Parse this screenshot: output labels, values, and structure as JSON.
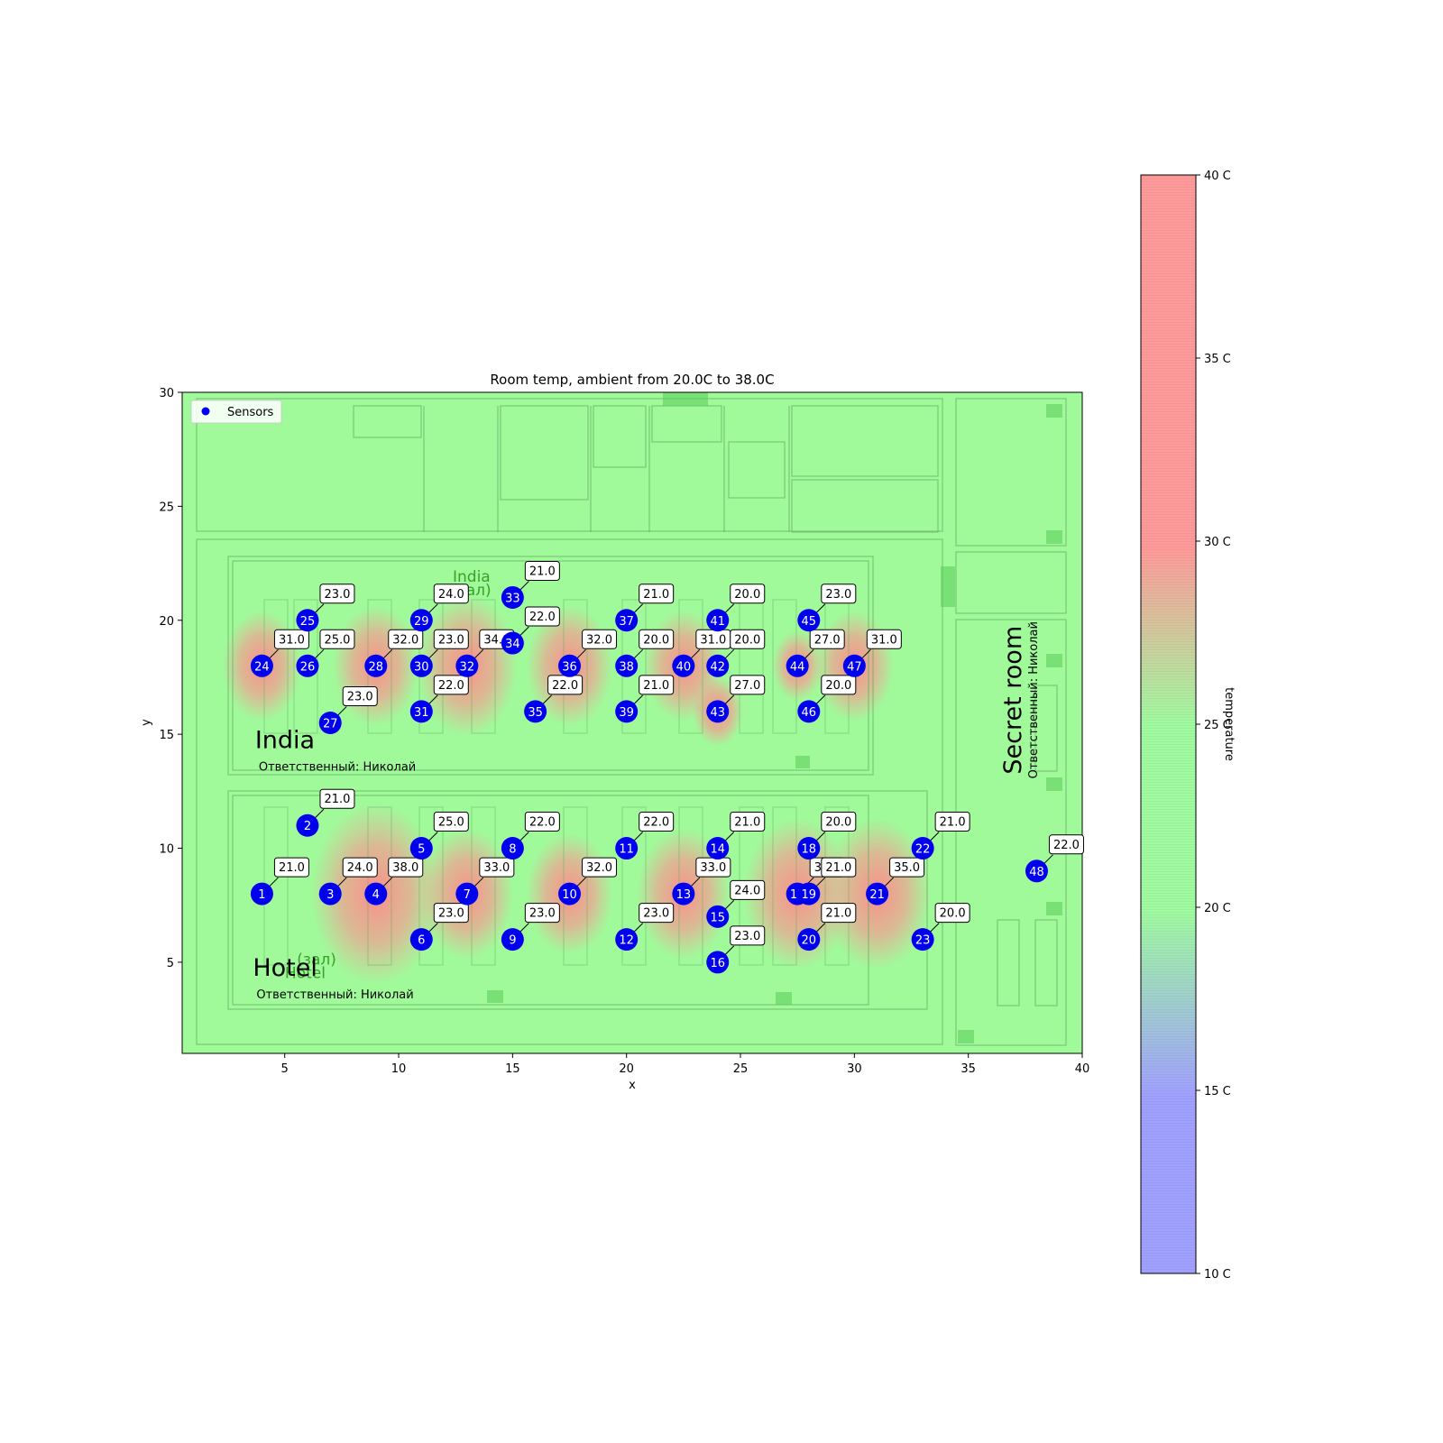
{
  "chart_data": {
    "type": "heatmap",
    "title": "Room temp, ambient from 20.0C to 38.0C",
    "xlabel": "x",
    "ylabel": "y",
    "xlim": [
      0.5,
      40
    ],
    "ylim": [
      1,
      30
    ],
    "xticks": [
      5,
      10,
      15,
      20,
      25,
      30,
      35,
      40
    ],
    "yticks": [
      5,
      10,
      15,
      20,
      25,
      30
    ],
    "legend": {
      "label": "Sensors",
      "placement": "top-left"
    },
    "colorbar": {
      "label": "temperature",
      "range": [
        10,
        40
      ],
      "ticks": [
        {
          "value": 10,
          "label": "10 C"
        },
        {
          "value": 15,
          "label": "15 C"
        },
        {
          "value": 20,
          "label": "20 C"
        },
        {
          "value": 25,
          "label": "25 C"
        },
        {
          "value": 30,
          "label": "30 C"
        },
        {
          "value": 35,
          "label": "35 C"
        },
        {
          "value": 40,
          "label": "40 C"
        }
      ]
    },
    "rooms": [
      {
        "name": "India",
        "responsible": "Ответственный: Николай",
        "x": 3.7,
        "y": 14.4,
        "vertical": false
      },
      {
        "name": "Hotel",
        "responsible": "Ответственный: Николай",
        "x": 3.6,
        "y": 4.4,
        "vertical": false
      },
      {
        "name": "Secret room",
        "responsible": "Ответственный: Николай",
        "x": 37.3,
        "y": 16.5,
        "vertical": true
      }
    ],
    "plan_labels": [
      {
        "text": "India",
        "x": 13.2,
        "y": 21.7
      },
      {
        "text": "(зал)",
        "x": 13.2,
        "y": 21.1
      },
      {
        "text": "Hotel",
        "x": 5.9,
        "y": 4.3
      },
      {
        "text": "(зал)",
        "x": 6.4,
        "y": 4.9
      }
    ],
    "sensors": [
      {
        "id": "1",
        "x": 4,
        "y": 8,
        "temp": "21.0"
      },
      {
        "id": "2",
        "x": 6,
        "y": 11,
        "temp": "21.0"
      },
      {
        "id": "3",
        "x": 7,
        "y": 8,
        "temp": "24.0"
      },
      {
        "id": "4",
        "x": 9,
        "y": 8,
        "temp": "38.0"
      },
      {
        "id": "5",
        "x": 11,
        "y": 10,
        "temp": "25.0"
      },
      {
        "id": "6",
        "x": 11,
        "y": 6,
        "temp": "23.0"
      },
      {
        "id": "7",
        "x": 13,
        "y": 8,
        "temp": "33.0"
      },
      {
        "id": "8",
        "x": 15,
        "y": 10,
        "temp": "22.0"
      },
      {
        "id": "9",
        "x": 15,
        "y": 6,
        "temp": "23.0"
      },
      {
        "id": "10",
        "x": 17.5,
        "y": 8,
        "temp": "32.0"
      },
      {
        "id": "11",
        "x": 20,
        "y": 10,
        "temp": "22.0"
      },
      {
        "id": "12",
        "x": 20,
        "y": 6,
        "temp": "23.0"
      },
      {
        "id": "13",
        "x": 22.5,
        "y": 8,
        "temp": "33.0"
      },
      {
        "id": "14",
        "x": 24,
        "y": 10,
        "temp": "21.0"
      },
      {
        "id": "15",
        "x": 24,
        "y": 7,
        "temp": "24.0"
      },
      {
        "id": "16",
        "x": 24,
        "y": 5,
        "temp": "23.0"
      },
      {
        "id": "17",
        "x": 27.5,
        "y": 8,
        "temp": "35.0"
      },
      {
        "id": "18",
        "x": 28,
        "y": 10,
        "temp": "20.0"
      },
      {
        "id": "19",
        "x": 28,
        "y": 8,
        "temp": "21.0"
      },
      {
        "id": "20",
        "x": 28,
        "y": 6,
        "temp": "21.0"
      },
      {
        "id": "21",
        "x": 31,
        "y": 8,
        "temp": "35.0"
      },
      {
        "id": "22",
        "x": 33,
        "y": 10,
        "temp": "21.0"
      },
      {
        "id": "23",
        "x": 33,
        "y": 6,
        "temp": "20.0"
      },
      {
        "id": "24",
        "x": 4,
        "y": 18,
        "temp": "31.0"
      },
      {
        "id": "25",
        "x": 6,
        "y": 20,
        "temp": "23.0"
      },
      {
        "id": "26",
        "x": 6,
        "y": 18,
        "temp": "25.0"
      },
      {
        "id": "27",
        "x": 7,
        "y": 15.5,
        "temp": "23.0"
      },
      {
        "id": "28",
        "x": 9,
        "y": 18,
        "temp": "32.0"
      },
      {
        "id": "29",
        "x": 11,
        "y": 20,
        "temp": "24.0"
      },
      {
        "id": "30",
        "x": 11,
        "y": 18,
        "temp": "23.0"
      },
      {
        "id": "31",
        "x": 11,
        "y": 16,
        "temp": "22.0"
      },
      {
        "id": "32",
        "x": 13,
        "y": 18,
        "temp": "34.0"
      },
      {
        "id": "33",
        "x": 15,
        "y": 21,
        "temp": "21.0"
      },
      {
        "id": "34",
        "x": 15,
        "y": 19,
        "temp": "22.0"
      },
      {
        "id": "35",
        "x": 16,
        "y": 16,
        "temp": "22.0"
      },
      {
        "id": "36",
        "x": 17.5,
        "y": 18,
        "temp": "32.0"
      },
      {
        "id": "37",
        "x": 20,
        "y": 20,
        "temp": "21.0"
      },
      {
        "id": "38",
        "x": 20,
        "y": 18,
        "temp": "20.0"
      },
      {
        "id": "39",
        "x": 20,
        "y": 16,
        "temp": "21.0"
      },
      {
        "id": "40",
        "x": 22.5,
        "y": 18,
        "temp": "31.0"
      },
      {
        "id": "41",
        "x": 24,
        "y": 20,
        "temp": "20.0"
      },
      {
        "id": "42",
        "x": 24,
        "y": 18,
        "temp": "20.0"
      },
      {
        "id": "43",
        "x": 24,
        "y": 16,
        "temp": "27.0"
      },
      {
        "id": "44",
        "x": 27.5,
        "y": 18,
        "temp": "27.0"
      },
      {
        "id": "45",
        "x": 28,
        "y": 20,
        "temp": "23.0"
      },
      {
        "id": "46",
        "x": 28,
        "y": 16,
        "temp": "20.0"
      },
      {
        "id": "47",
        "x": 30,
        "y": 18,
        "temp": "31.0"
      },
      {
        "id": "48",
        "x": 38,
        "y": 9,
        "temp": "22.0"
      }
    ]
  },
  "colors": {
    "background": "#a0fa9a",
    "sensor": "#0000ee",
    "hot": "#ff9a9a",
    "plan_line": "#5fa85f"
  }
}
